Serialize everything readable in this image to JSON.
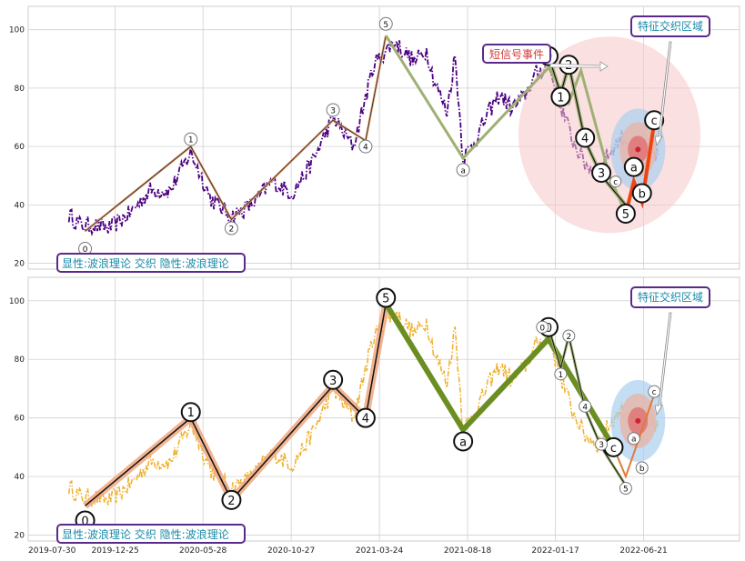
{
  "chart_data": [
    {
      "type": "line",
      "panel": "top",
      "title": "",
      "ylim": [
        18,
        108
      ],
      "y_ticks": [
        20,
        40,
        60,
        80,
        100
      ],
      "x_tick_labels": [
        "2019-07-30",
        "2019-12-25",
        "2020-05-28",
        "2020-10-27",
        "2021-03-24",
        "2021-08-18",
        "2022-01-17",
        "2022-06-21"
      ],
      "grid": true,
      "series": [
        {
          "name": "price",
          "style": "dash-dot",
          "color": "#4b0082",
          "anchors": [
            [
              0,
              36.5
            ],
            [
              3,
              33
            ],
            [
              6,
              33
            ],
            [
              10,
              32
            ],
            [
              15,
              37
            ],
            [
              20,
              45
            ],
            [
              25,
              45
            ],
            [
              30,
              58
            ],
            [
              35,
              42
            ],
            [
              40,
              36
            ],
            [
              45,
              40
            ],
            [
              50,
              48
            ],
            [
              55,
              44
            ],
            [
              60,
              55
            ],
            [
              65,
              70
            ],
            [
              70,
              60
            ],
            [
              75,
              88
            ],
            [
              80,
              96
            ],
            [
              85,
              89
            ],
            [
              88,
              93
            ],
            [
              90,
              82
            ],
            [
              93,
              72
            ],
            [
              95,
              91
            ],
            [
              97,
              56
            ],
            [
              100,
              62
            ],
            [
              103,
              71
            ],
            [
              106,
              78
            ],
            [
              109,
              73
            ],
            [
              112,
              77
            ],
            [
              115,
              85
            ],
            [
              118,
              88
            ],
            [
              121,
              74
            ],
            [
              124,
              62
            ],
            [
              127,
              54
            ],
            [
              130,
              51
            ],
            [
              133,
              58
            ],
            [
              136,
              63
            ],
            [
              139,
              60
            ],
            [
              142,
              60
            ],
            [
              145,
              57
            ]
          ]
        }
      ],
      "wave_explicit": {
        "label": "显性:波浪理论",
        "points": [
          [
            4,
            31
          ],
          [
            30,
            60
          ],
          [
            40,
            35
          ],
          [
            65,
            69
          ],
          [
            73,
            62
          ],
          [
            78,
            98
          ]
        ],
        "labels": [
          "0",
          "1",
          "2",
          "3",
          "4",
          "5"
        ]
      },
      "wave_corrective": {
        "points": [
          [
            78,
            98
          ],
          [
            97,
            56
          ],
          [
            118,
            87
          ],
          [
            123,
            75
          ],
          [
            126,
            86
          ],
          [
            133,
            50
          ],
          [
            137,
            37
          ]
        ],
        "labels": [
          "a",
          "0",
          "1",
          "2",
          "4",
          "5"
        ]
      },
      "wave_hidden": {
        "label": "隐性:波浪理论",
        "points": [
          [
            118,
            91
          ],
          [
            121,
            78
          ],
          [
            123,
            88
          ],
          [
            127,
            62
          ],
          [
            131,
            50
          ],
          [
            137,
            40
          ]
        ],
        "labels": [
          "0",
          "1",
          "2",
          "3",
          "4",
          "5"
        ]
      },
      "wave_red": {
        "points": [
          [
            137,
            37
          ],
          [
            139,
            48
          ],
          [
            141,
            41
          ],
          [
            144,
            68
          ]
        ],
        "labels": [
          "a",
          "b",
          "c"
        ]
      },
      "annotations": {
        "signal": "短信号事件",
        "zone": "特征交织区域",
        "legend": {
          "prefix": "显性:",
          "wave1": "波浪理论",
          "mid": " 交织 ",
          "prefix2": "隐性:",
          "wave2": "波浪理论"
        }
      }
    },
    {
      "type": "line",
      "panel": "bottom",
      "ylim": [
        18,
        108
      ],
      "y_ticks": [
        20,
        40,
        60,
        80,
        100
      ],
      "grid": true,
      "series": [
        {
          "name": "price",
          "style": "dash-dot",
          "color": "#efb02a"
        }
      ],
      "wave_explicit": {
        "points": [
          [
            4,
            30
          ],
          [
            30,
            60
          ],
          [
            40,
            32
          ],
          [
            65,
            71
          ],
          [
            73,
            60
          ],
          [
            78,
            99
          ],
          [
            97,
            56
          ],
          [
            118,
            87
          ],
          [
            134,
            50
          ],
          [
            137,
            40
          ],
          [
            144,
            68
          ]
        ],
        "labels": [
          "0",
          "1",
          "2",
          "3",
          "4",
          "5",
          "a",
          "0",
          "c"
        ]
      },
      "wave_hidden": {
        "points": [
          [
            118,
            91
          ],
          [
            121,
            77
          ],
          [
            123,
            88
          ],
          [
            127,
            63
          ],
          [
            131,
            50
          ],
          [
            137,
            37
          ]
        ],
        "labels": [
          "1",
          "2",
          "3",
          "4",
          "5"
        ]
      },
      "annotations": {
        "zone": "特征交织区域"
      }
    }
  ],
  "legend": {
    "prefix": "显性:",
    "wave1": "波浪理论",
    "mid": " 交织 ",
    "prefix2": "隐性:",
    "wave2": "波浪理论"
  },
  "zone_title": "特征交织区域",
  "signal_title": "短信号事件",
  "labels": {
    "explicit": [
      "0",
      "1",
      "2",
      "3",
      "4",
      "5"
    ],
    "corrective": [
      "a",
      "b",
      "c"
    ]
  }
}
